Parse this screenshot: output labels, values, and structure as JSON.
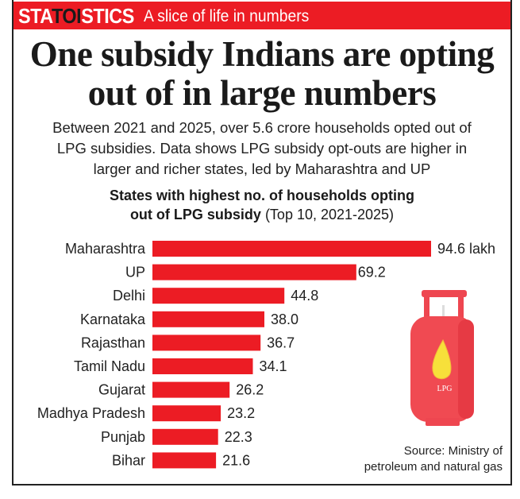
{
  "header": {
    "brand_prefix": "STA",
    "brand_highlight": "TOI",
    "brand_suffix": "STICS",
    "tagline": "A slice of life in numbers"
  },
  "headline": {
    "line1": "One subsidy Indians are opting",
    "line2": "out of in large numbers"
  },
  "dek": {
    "line1": "Between 2021 and 2025, over 5.6 crore households opted out of",
    "line2": "LPG subsidies. Data shows LPG subsidy opt-outs are higher in",
    "line3": "larger and richer states, led by Maharashtra and UP"
  },
  "illustration": {
    "label": "LPG",
    "body_color": "#f04a52",
    "flame_color": "#f7e03a"
  },
  "source": {
    "line1": "Source: Ministry of",
    "line2": "petroleum and natural gas"
  },
  "colors": {
    "accent": "#ec1c24",
    "bar": "#ec1c24",
    "text": "#222222"
  },
  "chart_data": {
    "type": "bar",
    "orientation": "horizontal",
    "title_bold_line1": "States with highest no. of households opting",
    "title_bold_line2": "out of LPG subsidy",
    "title_note": " (Top 10, 2021-2025)",
    "unit": "lakh",
    "categories": [
      "Maharashtra",
      "UP",
      "Delhi",
      "Karnataka",
      "Rajasthan",
      "Tamil Nadu",
      "Gujarat",
      "Madhya Pradesh",
      "Punjab",
      "Bihar"
    ],
    "values": [
      94.6,
      69.2,
      44.8,
      38.0,
      36.7,
      34.1,
      26.2,
      23.2,
      22.3,
      21.6
    ],
    "value_labels": [
      "94.6 lakh",
      "69.2",
      "44.8",
      "38.0",
      "36.7",
      "34.1",
      "26.2",
      "23.2",
      "22.3",
      "21.6"
    ],
    "xlabel": "",
    "ylabel": "",
    "xlim": [
      0,
      94.6
    ],
    "grid": false,
    "legend": "none"
  }
}
